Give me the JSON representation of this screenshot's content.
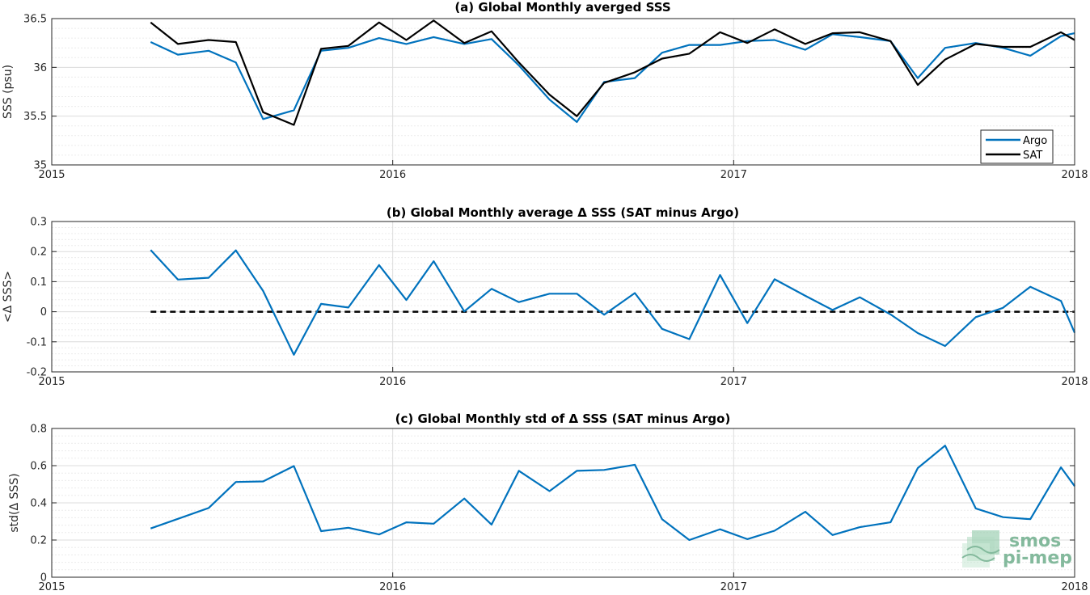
{
  "colors": {
    "argo": "#0072bd",
    "sat": "#000000",
    "zero_line": "#000000",
    "grid": "#e3e3e3",
    "watermark": "#6fae8c"
  },
  "watermark": {
    "line1": "smos",
    "line2": "pi-mep"
  },
  "chart_data": [
    {
      "type": "line",
      "title": "(a) Global Monthly averged SSS",
      "ylabel": "SSS (psu)",
      "xlabel": "",
      "xlim": [
        2015,
        2018
      ],
      "ylim": [
        35,
        36.5
      ],
      "xticks": [
        "2015",
        "2016",
        "2017",
        "2018"
      ],
      "yticks": [
        "35",
        "35.5",
        "36",
        "36.5"
      ],
      "ytick_values": [
        35,
        35.5,
        36,
        36.5
      ],
      "grid": true,
      "legend_position": "bottom-right",
      "legend": [
        "Argo",
        "SAT"
      ],
      "x": [
        2015.29,
        2015.37,
        2015.46,
        2015.54,
        2015.62,
        2015.71,
        2015.79,
        2015.87,
        2015.96,
        2016.04,
        2016.12,
        2016.21,
        2016.29,
        2016.37,
        2016.46,
        2016.54,
        2016.62,
        2016.71,
        2016.79,
        2016.87,
        2016.96,
        2017.04,
        2017.12,
        2017.21,
        2017.29,
        2017.37,
        2017.46,
        2017.54,
        2017.62,
        2017.71,
        2017.79,
        2017.87,
        2017.96,
        2018.0
      ],
      "series": [
        {
          "name": "Argo",
          "values": [
            36.26,
            36.13,
            36.17,
            36.05,
            35.47,
            35.56,
            36.17,
            36.2,
            36.3,
            36.24,
            36.31,
            36.24,
            36.29,
            36.02,
            35.67,
            35.44,
            35.85,
            35.89,
            36.15,
            36.23,
            36.23,
            36.27,
            36.28,
            36.18,
            36.34,
            36.31,
            36.27,
            35.89,
            36.2,
            36.25,
            36.2,
            36.12,
            36.32,
            36.35
          ]
        },
        {
          "name": "SAT",
          "values": [
            36.46,
            36.24,
            36.28,
            36.26,
            35.54,
            35.41,
            36.19,
            36.22,
            36.46,
            36.28,
            36.48,
            36.25,
            36.37,
            36.05,
            35.72,
            35.5,
            35.84,
            35.95,
            36.09,
            36.14,
            36.36,
            36.25,
            36.39,
            36.24,
            36.35,
            36.36,
            36.27,
            35.82,
            36.08,
            36.24,
            36.21,
            36.21,
            36.36,
            36.28
          ]
        }
      ]
    },
    {
      "type": "line",
      "title": "(b) Global Monthly average Δ SSS (SAT minus Argo)",
      "ylabel": "<Δ SSS>",
      "xlabel": "",
      "xlim": [
        2015,
        2018
      ],
      "ylim": [
        -0.2,
        0.3
      ],
      "xticks": [
        "2015",
        "2016",
        "2017",
        "2018"
      ],
      "yticks": [
        "-0.2",
        "-0.1",
        "0",
        "0.1",
        "0.2",
        "0.3"
      ],
      "ytick_values": [
        -0.2,
        -0.1,
        0,
        0.1,
        0.2,
        0.3
      ],
      "grid": true,
      "zero_line": {
        "x_start": 2015.29,
        "x_end": 2018.0,
        "y": 0
      },
      "x": [
        2015.29,
        2015.37,
        2015.46,
        2015.54,
        2015.62,
        2015.71,
        2015.79,
        2015.87,
        2015.96,
        2016.04,
        2016.12,
        2016.21,
        2016.29,
        2016.37,
        2016.46,
        2016.54,
        2016.62,
        2016.71,
        2016.79,
        2016.87,
        2016.96,
        2017.04,
        2017.12,
        2017.21,
        2017.29,
        2017.37,
        2017.46,
        2017.54,
        2017.62,
        2017.71,
        2017.79,
        2017.87,
        2017.96,
        2018.0
      ],
      "series": [
        {
          "name": "",
          "values": [
            0.205,
            0.107,
            0.113,
            0.204,
            0.069,
            -0.143,
            0.026,
            0.014,
            0.155,
            0.039,
            0.168,
            0.001,
            0.076,
            0.032,
            0.06,
            0.06,
            -0.01,
            0.062,
            -0.057,
            -0.091,
            0.122,
            -0.038,
            0.108,
            0.053,
            0.006,
            0.048,
            -0.009,
            -0.071,
            -0.114,
            -0.018,
            0.013,
            0.083,
            0.036,
            -0.07
          ]
        }
      ]
    },
    {
      "type": "line",
      "title": "(c) Global Monthly std of Δ SSS (SAT minus Argo)",
      "ylabel": "std(Δ SSS)",
      "xlabel": "",
      "xlim": [
        2015,
        2018
      ],
      "ylim": [
        0,
        0.8
      ],
      "xticks": [
        "2015",
        "2016",
        "2017",
        "2018"
      ],
      "yticks": [
        "0",
        "0.2",
        "0.4",
        "0.6",
        "0.8"
      ],
      "ytick_values": [
        0,
        0.2,
        0.4,
        0.6,
        0.8
      ],
      "grid": true,
      "x": [
        2015.29,
        2015.37,
        2015.46,
        2015.54,
        2015.62,
        2015.71,
        2015.79,
        2015.87,
        2015.96,
        2016.04,
        2016.12,
        2016.21,
        2016.29,
        2016.37,
        2016.46,
        2016.54,
        2016.62,
        2016.71,
        2016.79,
        2016.87,
        2016.96,
        2017.04,
        2017.12,
        2017.21,
        2017.29,
        2017.37,
        2017.46,
        2017.54,
        2017.62,
        2017.71,
        2017.79,
        2017.87,
        2017.96,
        2018.0
      ],
      "series": [
        {
          "name": "",
          "values": [
            0.262,
            0.314,
            0.372,
            0.512,
            0.515,
            0.598,
            0.248,
            0.266,
            0.23,
            0.295,
            0.288,
            0.423,
            0.283,
            0.572,
            0.463,
            0.572,
            0.577,
            0.605,
            0.312,
            0.2,
            0.258,
            0.205,
            0.25,
            0.352,
            0.227,
            0.269,
            0.295,
            0.587,
            0.708,
            0.37,
            0.323,
            0.312,
            0.591,
            0.49
          ]
        }
      ]
    }
  ]
}
